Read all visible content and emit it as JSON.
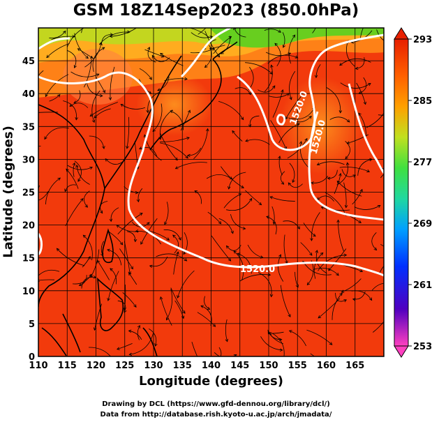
{
  "title": "GSM 18Z14Sep2023 (850.0hPa)",
  "xlabel": "Longitude (degrees)",
  "ylabel": "Latitude  (degrees)",
  "credits": {
    "line1": "Drawing by DCL (https://www.gfd-dennou.org/library/dcl/)",
    "line2": "Data from http://database.rish.kyoto-u.ac.jp/arch/jmadata/"
  },
  "axes": {
    "x_ticks": [
      "110",
      "115",
      "120",
      "125",
      "130",
      "135",
      "140",
      "145",
      "150",
      "155",
      "160",
      "165"
    ],
    "y_ticks": [
      "0",
      "5",
      "10",
      "15",
      "20",
      "25",
      "30",
      "35",
      "40",
      "45"
    ],
    "x_range": [
      110,
      170
    ],
    "y_range": [
      0,
      50
    ]
  },
  "colorbar": {
    "ticks": [
      "293",
      "285",
      "277",
      "269",
      "261",
      "253"
    ],
    "range": [
      253,
      293
    ],
    "colors": [
      "#ff40c0",
      "#5000c0",
      "#0030ff",
      "#00a0ff",
      "#20d8a0",
      "#40e040",
      "#c0e020",
      "#ffa000",
      "#ff6000",
      "#e82000"
    ]
  },
  "contour_labels": [
    "1520.0",
    "1520.0",
    "1520.0"
  ],
  "field_colors": {
    "warm": "#f23a0c",
    "mid": "#ff6a10",
    "orange": "#ffa020",
    "green": "#60d020",
    "contour": "#ffffff",
    "streamline": "#000000"
  }
}
